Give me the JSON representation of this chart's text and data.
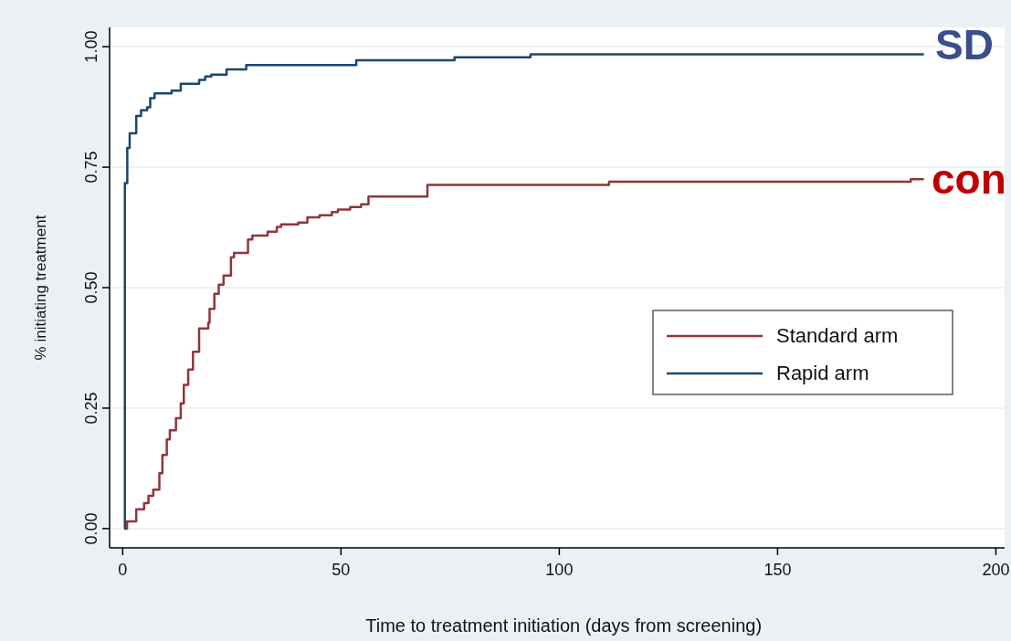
{
  "chart_data": {
    "type": "step",
    "xlabel": "Time to treatment initiation (days from screening)",
    "ylabel": "% initiating treatment",
    "xlim": [
      -3,
      202
    ],
    "xticks": [
      0,
      50,
      100,
      150,
      200
    ],
    "ylim": [
      -0.04,
      1.04
    ],
    "yticks": [
      {
        "value": 0,
        "label": "0.00"
      },
      {
        "value": 0.25,
        "label": "0.25"
      },
      {
        "value": 0.5,
        "label": "0.50"
      },
      {
        "value": 0.75,
        "label": "0.75"
      },
      {
        "value": 1,
        "label": "1.00"
      }
    ],
    "grid": "y",
    "legend": "right",
    "annotations": [
      "SD",
      "con"
    ],
    "series": [
      {
        "name": "Standard arm",
        "color": "#90353b",
        "x": [
          0.5,
          1,
          3.1,
          4.9,
          5.9,
          7,
          8.4,
          9.1,
          10.1,
          10.8,
          12.2,
          13.3,
          14,
          15,
          16.1,
          17.5,
          19.6,
          19.9,
          21,
          22,
          23.1,
          24.8,
          25.5,
          28.7,
          29.7,
          33.2,
          35.3,
          36.3,
          40.2,
          42.3,
          45.1,
          47.9,
          49.3,
          52.1,
          54.6,
          56.3,
          69.8,
          111.4,
          180.5,
          183.5
        ],
        "values": [
          0,
          0.015,
          0.04,
          0.053,
          0.068,
          0.081,
          0.115,
          0.153,
          0.185,
          0.204,
          0.229,
          0.26,
          0.298,
          0.33,
          0.367,
          0.415,
          0.427,
          0.456,
          0.487,
          0.506,
          0.525,
          0.563,
          0.572,
          0.6,
          0.608,
          0.616,
          0.626,
          0.631,
          0.635,
          0.646,
          0.65,
          0.657,
          0.662,
          0.667,
          0.673,
          0.689,
          0.713,
          0.72,
          0.725,
          0.725
        ]
      },
      {
        "name": "Rapid arm",
        "color": "#1a476f",
        "x": [
          0.35,
          0.5,
          1.05,
          1.6,
          3.1,
          4.2,
          5.6,
          6.3,
          7.3,
          11.2,
          13.3,
          17.5,
          18.9,
          20.3,
          23.8,
          28.3,
          53.5,
          76,
          93.4,
          183.5
        ],
        "values": [
          0,
          0.717,
          0.79,
          0.82,
          0.856,
          0.868,
          0.874,
          0.893,
          0.903,
          0.909,
          0.923,
          0.931,
          0.938,
          0.942,
          0.953,
          0.962,
          0.972,
          0.978,
          0.984,
          0.984
        ]
      }
    ]
  }
}
